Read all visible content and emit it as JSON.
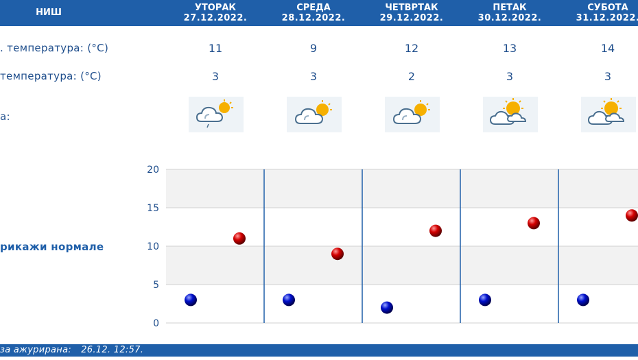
{
  "header": {
    "city": "НИШ",
    "days": [
      {
        "name": "УТОРАК",
        "date": "27.12.2022."
      },
      {
        "name": "СРЕДА",
        "date": "28.12.2022."
      },
      {
        "name": "ЧЕТВРТАК",
        "date": "29.12.2022."
      },
      {
        "name": "ПЕТАК",
        "date": "30.12.2022."
      },
      {
        "name": "СУБОТА",
        "date": "31.12.2022."
      }
    ]
  },
  "rows": {
    "max_label": ". температура: (°C)",
    "min_label": "температура: (°C)",
    "weather_label": "а:",
    "max_values": [
      "11",
      "9",
      "12",
      "13",
      "14"
    ],
    "min_values": [
      "3",
      "3",
      "2",
      "3",
      "3"
    ],
    "weather_icons": [
      "cloud-sun-light-rain-icon",
      "cloud-sun-icon",
      "cloud-sun-icon",
      "sun-cloud-icon",
      "sun-cloud-icon"
    ]
  },
  "normals_link": "рикажи нормале",
  "footer": {
    "prefix": "за ажурирана:",
    "timestamp": "26.12. 12:57."
  },
  "chart_data": {
    "type": "scatter",
    "categories": [
      "27.12.2022.",
      "28.12.2022.",
      "29.12.2022.",
      "30.12.2022.",
      "31.12.2022."
    ],
    "series": [
      {
        "values": [
          11,
          9,
          12,
          13,
          14
        ],
        "color": "#cc0000"
      },
      {
        "values": [
          3,
          3,
          2,
          3,
          3
        ],
        "color": "#0000cc"
      }
    ],
    "yticks": [
      "0",
      "5",
      "10",
      "15",
      "20"
    ],
    "ylim": [
      0,
      20
    ],
    "grid": true
  }
}
